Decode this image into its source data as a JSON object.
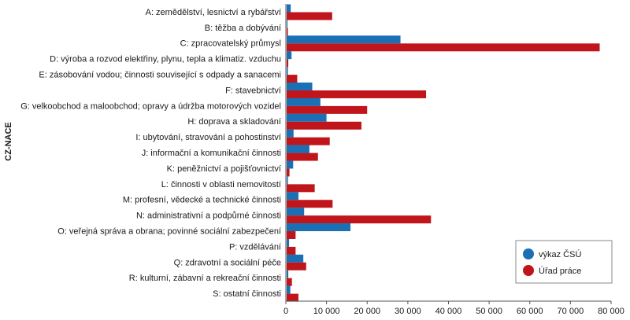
{
  "chart_data": {
    "type": "bar",
    "orientation": "horizontal",
    "ylabel": "CZ-NACE",
    "xlabel": "",
    "xlim": [
      0,
      80000
    ],
    "x_ticks": [
      "0",
      "10 000",
      "20 000",
      "30 000",
      "40 000",
      "50 000",
      "60 000",
      "70 000",
      "80 000"
    ],
    "x_tick_values": [
      0,
      10000,
      20000,
      30000,
      40000,
      50000,
      60000,
      70000,
      80000
    ],
    "grid": false,
    "legend_position": "bottom-right",
    "categories": [
      "A: zemědělství, lesnictví a rybářství",
      "B: těžba a dobývání",
      "C: zpracovatelský průmysl",
      "D: výroba a rozvod elektřiny, plynu, tepla a klimatiz. vzduchu",
      "E: zásobování vodou; činnosti související s odpady a sanacemi",
      "F: stavebnictví",
      "G: velkoobchod a maloobchod; opravy a údržba motorových vozidel",
      "H: doprava a skladování",
      "I: ubytování, stravování a pohostinství",
      "J: informační a komunikační činnosti",
      "K: peněžnictví a pojišťovnictví",
      "L: činnosti v oblasti nemovitostí",
      "M: profesní, vědecké a technické činnosti",
      "N: administrativní a podpůrné činnosti",
      "O: veřejná správa a obrana; povinné sociální zabezpečení",
      "P: vzdělávání",
      "Q: zdravotní a sociální péče",
      "R: kulturní, zábavní a rekreační činnosti",
      "S: ostatní činnosti"
    ],
    "series": [
      {
        "name": "výkaz ČSÚ",
        "color": "#1a6fb5",
        "values": [
          1000,
          200,
          28000,
          1200,
          300,
          6300,
          8300,
          9800,
          1700,
          5600,
          1600,
          300,
          2900,
          4300,
          15700,
          600,
          4100,
          400,
          900
        ]
      },
      {
        "name": "Úřad práce",
        "color": "#c0161b",
        "values": [
          11200,
          300,
          77000,
          400,
          2600,
          34300,
          19800,
          18400,
          10600,
          7700,
          700,
          6900,
          11300,
          35500,
          2200,
          2200,
          4800,
          1300,
          2900
        ]
      }
    ]
  }
}
